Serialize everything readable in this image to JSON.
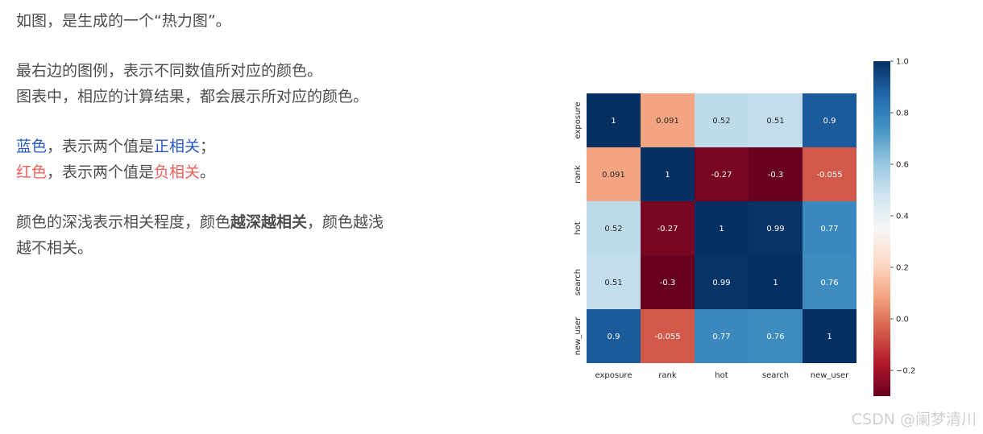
{
  "article": {
    "line1": "如图，是生成的一个“热力图”。",
    "line2": "最右边的图例，表示不同数值所对应的颜色。",
    "line3": "图表中，相应的计算结果，都会展示所对应的颜色。",
    "blue_label": "蓝色",
    "blue_mid": "，表示两个值是",
    "blue_term": "正相关",
    "blue_end": "；",
    "red_label": "红色",
    "red_mid": "，表示两个值是",
    "red_term": "负相关",
    "red_end": "。",
    "p3_a": "颜色的深浅表示相关程度，颜色",
    "p3_bold": "越深越相关",
    "p3_b": "，颜色越浅",
    "p3_c": "越不相关。"
  },
  "watermark": "CSDN @阑梦清川",
  "chart_data": {
    "type": "heatmap",
    "title": "",
    "xlabel": "",
    "ylabel": "",
    "x_categories": [
      "exposure",
      "rank",
      "hot",
      "search",
      "new_user"
    ],
    "y_categories": [
      "exposure",
      "rank",
      "hot",
      "search",
      "new_user"
    ],
    "values": [
      [
        1,
        0.091,
        0.52,
        0.51,
        0.9
      ],
      [
        0.091,
        1,
        -0.27,
        -0.3,
        -0.055
      ],
      [
        0.52,
        -0.27,
        1,
        0.99,
        0.77
      ],
      [
        0.51,
        -0.3,
        0.99,
        1,
        0.76
      ],
      [
        0.9,
        -0.055,
        0.77,
        0.76,
        1
      ]
    ],
    "labels": [
      [
        "1",
        "0.091",
        "0.52",
        "0.51",
        "0.9"
      ],
      [
        "0.091",
        "1",
        "-0.27",
        "-0.3",
        "-0.055"
      ],
      [
        "0.52",
        "-0.27",
        "1",
        "0.99",
        "0.77"
      ],
      [
        "0.51",
        "-0.3",
        "0.99",
        "1",
        "0.76"
      ],
      [
        "0.9",
        "-0.055",
        "0.77",
        "0.76",
        "1"
      ]
    ],
    "colormap": "RdBu",
    "color_range": [
      -0.3,
      1.0
    ],
    "colorbar_ticks": [
      1.0,
      0.8,
      0.6,
      0.4,
      0.2,
      0.0,
      -0.2
    ],
    "colorbar_tick_labels": [
      "1.0",
      "0.8",
      "0.6",
      "0.4",
      "0.2",
      "0.0",
      "−0.2"
    ],
    "colorbar_position": "right",
    "grid": false
  }
}
